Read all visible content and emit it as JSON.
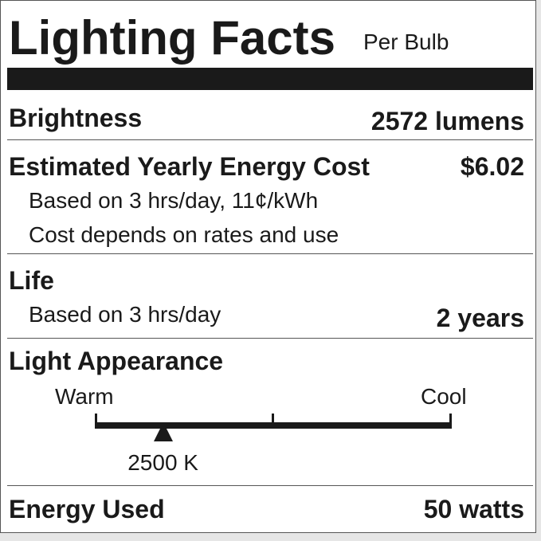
{
  "header": {
    "title": "Lighting Facts",
    "subtitle": "Per Bulb"
  },
  "brightness": {
    "label": "Brightness",
    "value": "2572 lumens"
  },
  "energy_cost": {
    "label": "Estimated Yearly Energy Cost",
    "value": "$6.02",
    "note1": "Based on 3 hrs/day, 11¢/kWh",
    "note2": "Cost depends on rates and use"
  },
  "life": {
    "label": "Life",
    "note": "Based on 3 hrs/day",
    "value": "2 years"
  },
  "light_appearance": {
    "label": "Light Appearance",
    "warm_label": "Warm",
    "cool_label": "Cool",
    "value": "2500 K",
    "scale_position": 0.19
  },
  "energy_used": {
    "label": "Energy Used",
    "value": "50 watts"
  },
  "colors": {
    "ink": "#1a1a1a",
    "background": "#ffffff"
  }
}
